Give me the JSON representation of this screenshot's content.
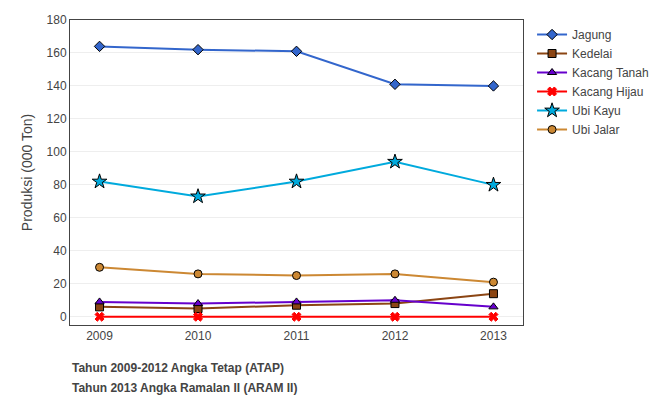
{
  "chart_data": {
    "type": "line",
    "categories": [
      "2009",
      "2010",
      "2011",
      "2012",
      "2013"
    ],
    "series": [
      {
        "name": "Jagung",
        "color": "#3366CC",
        "marker": "diamond",
        "values": [
          164,
          162,
          161,
          141,
          140
        ]
      },
      {
        "name": "Kedelai",
        "color": "#8B4513",
        "marker": "square",
        "values": [
          6,
          5,
          7,
          8,
          14
        ]
      },
      {
        "name": "Kacang Tanah",
        "color": "#6600CC",
        "marker": "triangle-up",
        "values": [
          9,
          8,
          9,
          10,
          6
        ]
      },
      {
        "name": "Kacang Hijau",
        "color": "#FF0000",
        "marker": "x",
        "values": [
          0,
          0,
          0,
          0,
          0
        ]
      },
      {
        "name": "Ubi Kayu",
        "color": "#00AADD",
        "marker": "star",
        "values": [
          82,
          73,
          82,
          94,
          80
        ]
      },
      {
        "name": "Ubi Jalar",
        "color": "#CC8833",
        "marker": "circle",
        "values": [
          30,
          26,
          25,
          26,
          21
        ]
      }
    ],
    "ylabel": "Produksi (000 Ton)",
    "ylim": [
      -5,
      180
    ],
    "yticks": [
      0,
      20,
      40,
      60,
      80,
      100,
      120,
      140,
      160,
      180
    ],
    "grid": true,
    "legend": "right",
    "annotations": [
      "Tahun 2009-2012 Angka Tetap (ATAP)",
      "Tahun 2013 Angka Ramalan II (ARAM II)"
    ]
  }
}
